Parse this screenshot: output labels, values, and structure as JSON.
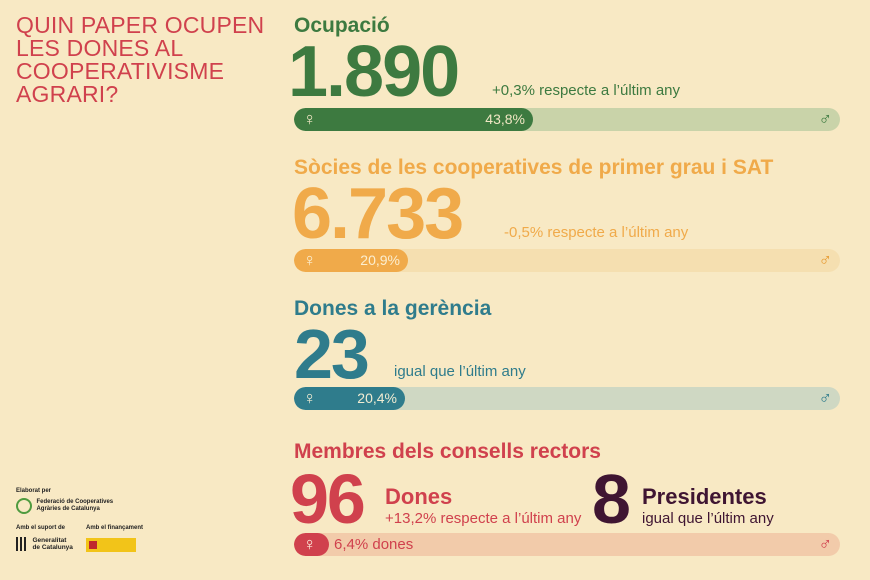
{
  "title": "QUIN PAPER OCUPEN LES DONES AL COOPERATIVISME AGRARI?",
  "sections": [
    {
      "title": "Ocupació",
      "value": "1.890",
      "delta": "+0,3% respecte a l’últim any",
      "women_pct_label": "43,8%",
      "women_fraction": 0.438,
      "female_symbol": "♀",
      "male_symbol": "♂"
    },
    {
      "title": "Sòcies de les cooperatives de primer grau i SAT",
      "value": "6.733",
      "delta": "-0,5% respecte a l’últim any",
      "women_pct_label": "20,9%",
      "women_fraction": 0.209,
      "female_symbol": "♀",
      "male_symbol": "♂"
    },
    {
      "title": "Dones a la gerència",
      "value": "23",
      "delta": "igual que l’últim any",
      "women_pct_label": "20,4%",
      "women_fraction": 0.204,
      "female_symbol": "♀",
      "male_symbol": "♂"
    },
    {
      "title": "Membres dels consells rectors",
      "women_value": "96",
      "women_label": "Dones",
      "women_delta": "+13,2% respecte a l’últim any",
      "presidents_value": "8",
      "presidents_label": "Presidentes",
      "presidents_delta": "igual que l’últim any",
      "women_pct_label": "6,4% dones",
      "women_fraction": 0.064,
      "female_symbol": "♀",
      "male_symbol": "♂"
    }
  ],
  "footer": {
    "elaborat_label": "Elaborat per",
    "fcac_name_line1": "Federació de Cooperatives",
    "fcac_name_line2": "Agràries de Catalunya",
    "suport_label": "Amb el suport de",
    "generalitat_line1": "Generalitat",
    "generalitat_line2": "de Catalunya",
    "financament_label": "Amb el finançament"
  }
}
